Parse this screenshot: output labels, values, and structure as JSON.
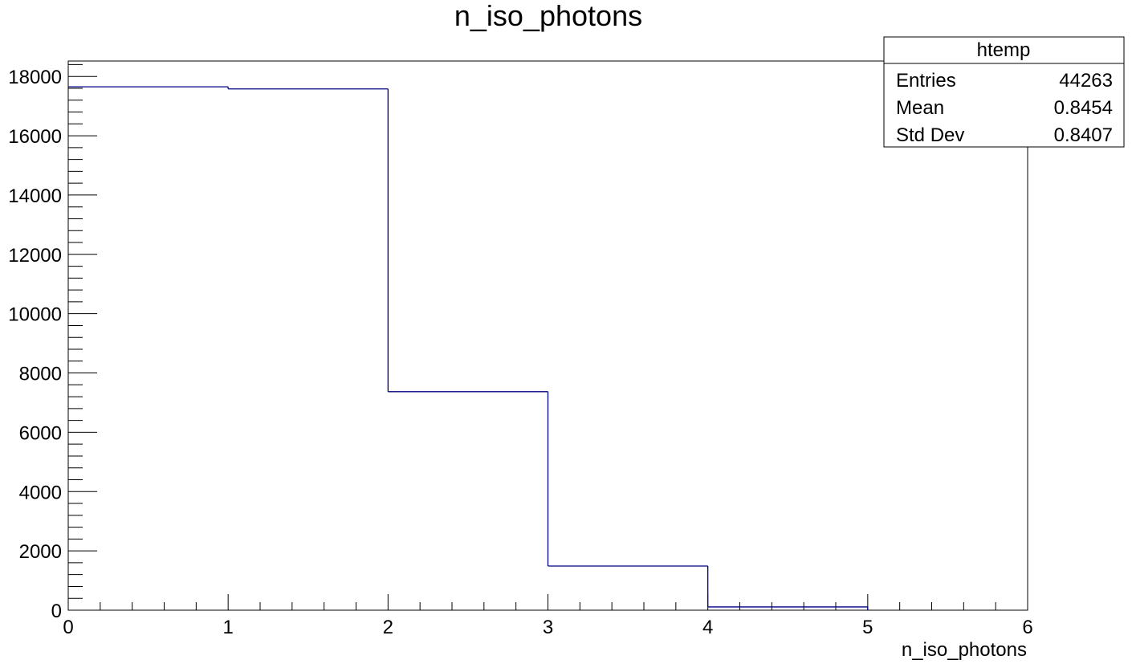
{
  "chart_data": {
    "type": "histogram",
    "title": "n_iso_photons",
    "xlabel": "n_iso_photons",
    "ylabel": "",
    "bin_edges": [
      0,
      1,
      2,
      3,
      4,
      5,
      6
    ],
    "values": [
      17650,
      17580,
      7370,
      1490,
      110,
      0
    ],
    "xlim": [
      0,
      6
    ],
    "ylim": [
      0,
      18520
    ],
    "x_ticks": [
      "0",
      "1",
      "2",
      "3",
      "4",
      "5",
      "6"
    ],
    "y_ticks": [
      "0",
      "2000",
      "4000",
      "6000",
      "8000",
      "10000",
      "12000",
      "14000",
      "16000",
      "18000"
    ],
    "grid": false,
    "line_color": "#000080",
    "stats_box": {
      "title": "htemp",
      "placement": "top-right",
      "rows": [
        {
          "label": "Entries",
          "value": "44263"
        },
        {
          "label": "Mean",
          "value": "0.8454"
        },
        {
          "label": "Std Dev",
          "value": "0.8407"
        }
      ]
    }
  }
}
